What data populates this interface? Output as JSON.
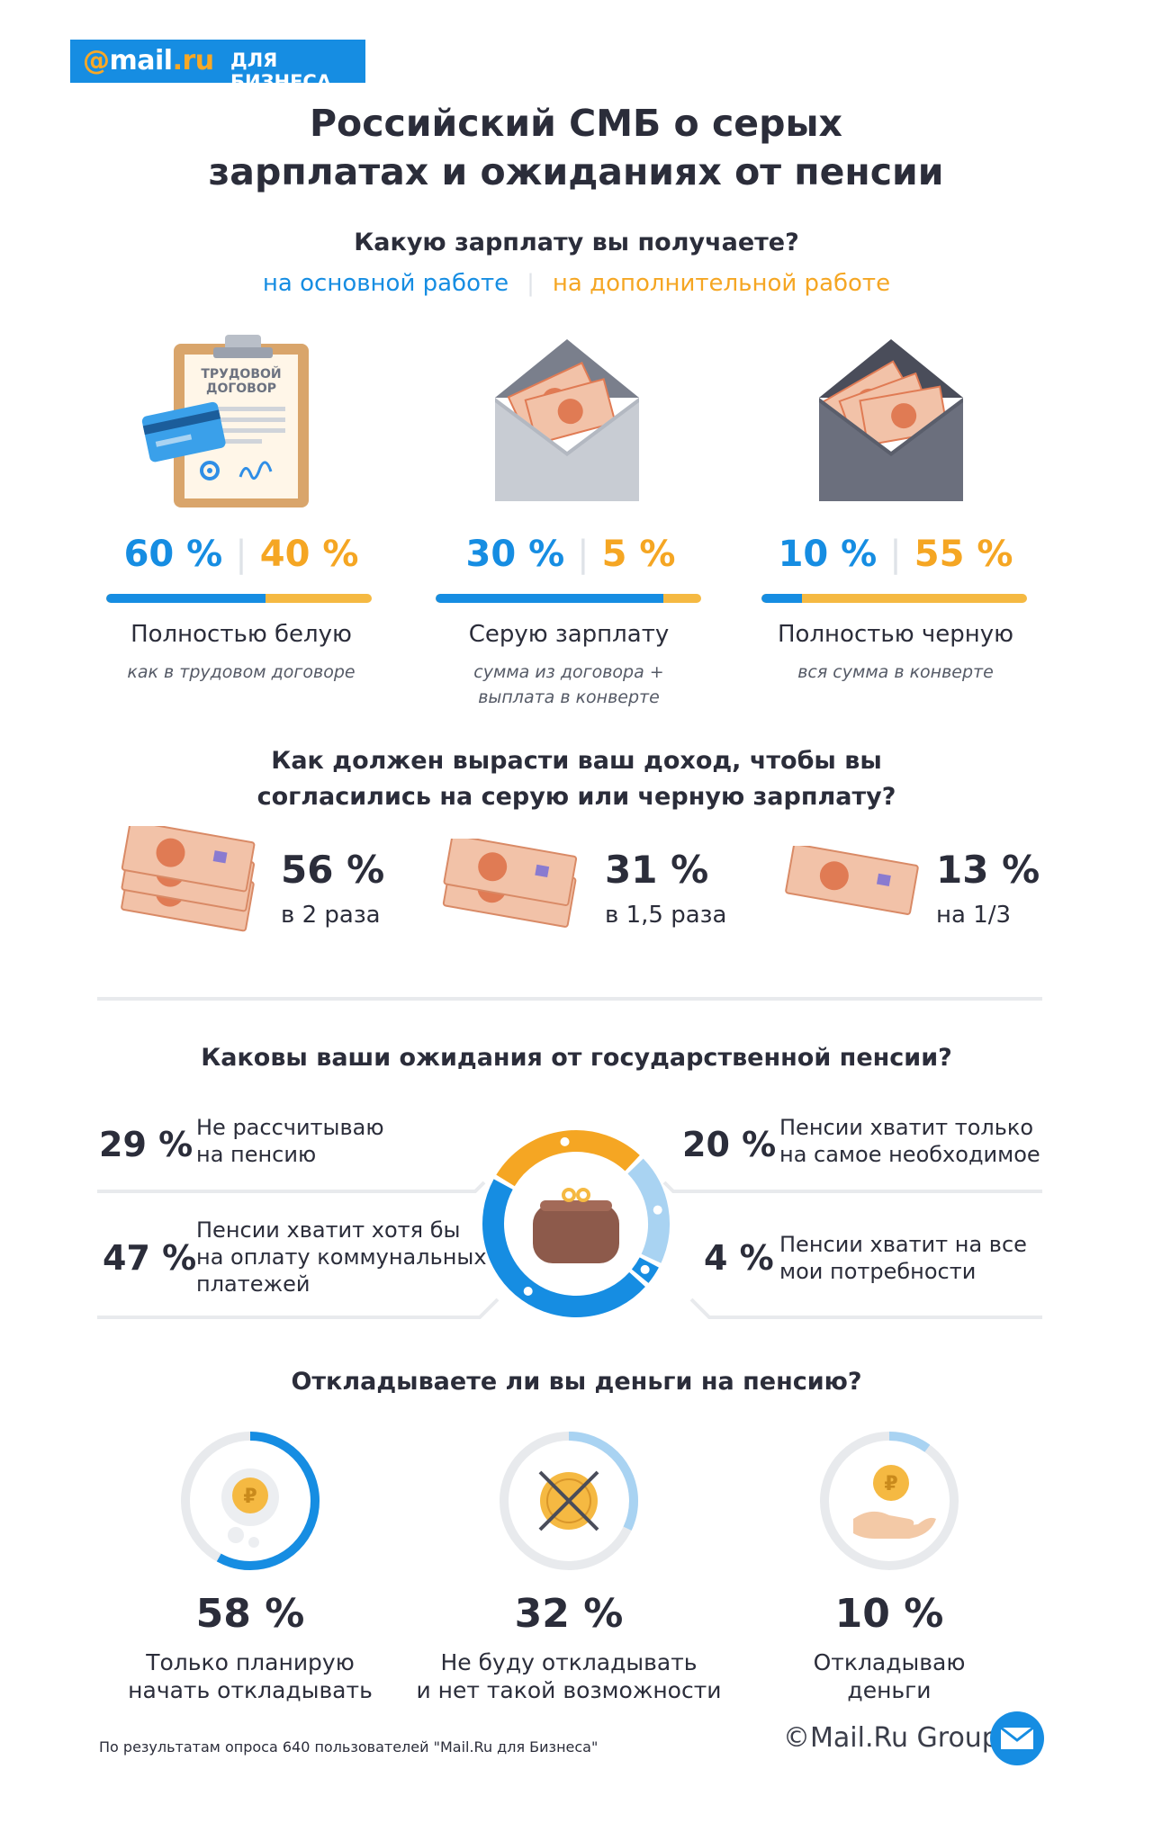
{
  "logo": {
    "at": "@",
    "mail": "mail",
    "ru": ".ru",
    "sub": "ДЛЯ БИЗНЕСА"
  },
  "title_line1": "Российский СМБ о серых",
  "title_line2": "зарплатах и ожиданиях от пенсии",
  "q1": {
    "title": "Какую зарплату вы получаете?",
    "tab_main": "на основной работе",
    "tab_extra": "на дополнительной работе",
    "items": [
      {
        "main": "60 %",
        "extra": "40 %",
        "main_value": 60,
        "extra_value": 40,
        "label": "Полностью белую",
        "note": "как в трудовом договоре",
        "note2": "",
        "icon_title1": "ТРУДОВОЙ",
        "icon_title2": "ДОГОВОР"
      },
      {
        "main": "30 %",
        "extra": "5 %",
        "main_value": 30,
        "extra_value": 5,
        "label": "Серую зарплату",
        "note": "сумма из договора +",
        "note2": "выплата в конверте"
      },
      {
        "main": "10 %",
        "extra": "55 %",
        "main_value": 10,
        "extra_value": 55,
        "label": "Полностью черную",
        "note": "вся сумма в конверте",
        "note2": ""
      }
    ]
  },
  "q2": {
    "title_line1": "Как должен вырасти ваш доход, чтобы вы",
    "title_line2": "согласились на серую или черную зарплату?",
    "items": [
      {
        "pct": "56 %",
        "label": "в 2 раза",
        "value": 56
      },
      {
        "pct": "31 %",
        "label": "в 1,5 раза",
        "value": 31
      },
      {
        "pct": "13 %",
        "label": "на 1/3",
        "value": 13
      }
    ]
  },
  "q3": {
    "title": "Каковы ваши ожидания от государственной пенсии?",
    "items": [
      {
        "pct": "29 %",
        "l1": "Не рассчитываю",
        "l2": "на пенсию",
        "l3": "",
        "value": 29
      },
      {
        "pct": "20 %",
        "l1": "Пенсии хватит только",
        "l2": "на самое необходимое",
        "l3": "",
        "value": 20
      },
      {
        "pct": "47 %",
        "l1": "Пенсии хватит хотя бы",
        "l2": "на оплату коммунальных",
        "l3": "платежей",
        "value": 47
      },
      {
        "pct": "4 %",
        "l1": "Пенсии хватит на все",
        "l2": "мои потребности",
        "l3": "",
        "value": 4
      }
    ]
  },
  "q4": {
    "title": "Откладываете ли вы деньги на пенсию?",
    "items": [
      {
        "pct": "58 %",
        "l1": "Только планирую",
        "l2": "начать откладывать",
        "value": 58
      },
      {
        "pct": "32 %",
        "l1": "Не буду откладывать",
        "l2": "и нет такой возможности",
        "value": 32
      },
      {
        "pct": "10 %",
        "l1": "Откладываю",
        "l2": "деньги",
        "value": 10
      }
    ]
  },
  "footer": {
    "source": "По результатам опроса 640 пользователей \"Mail.Ru для Бизнеса\"",
    "copyright": "©Mail.Ru Group"
  },
  "colors": {
    "blue": "#168de2",
    "orange": "#f5a623",
    "light_blue": "#a9d3f2",
    "grey_ring": "#e8eaed",
    "dark": "#2b2d3a"
  },
  "chart_data": [
    {
      "type": "bar",
      "title": "Какую зарплату вы получаете?",
      "categories": [
        "Полностью белую",
        "Серую зарплату",
        "Полностью черную"
      ],
      "series": [
        {
          "name": "на основной работе",
          "values": [
            60,
            30,
            10
          ]
        },
        {
          "name": "на дополнительной работе",
          "values": [
            40,
            5,
            55
          ]
        }
      ]
    },
    {
      "type": "bar",
      "title": "Как должен вырасти ваш доход, чтобы вы согласились на серую или черную зарплату?",
      "categories": [
        "в 2 раза",
        "в 1,5 раза",
        "на 1/3"
      ],
      "values": [
        56,
        31,
        13
      ]
    },
    {
      "type": "pie",
      "title": "Каковы ваши ожидания от государственной пенсии?",
      "categories": [
        "Не рассчитываю на пенсию",
        "Пенсии хватит только на самое необходимое",
        "Пенсии хватит хотя бы на оплату коммунальных платежей",
        "Пенсии хватит на все мои потребности"
      ],
      "values": [
        29,
        20,
        47,
        4
      ]
    },
    {
      "type": "bar",
      "title": "Откладываете ли вы деньги на пенсию?",
      "categories": [
        "Только планирую начать откладывать",
        "Не буду откладывать и нет такой возможности",
        "Откладываю деньги"
      ],
      "values": [
        58,
        32,
        10
      ]
    }
  ]
}
